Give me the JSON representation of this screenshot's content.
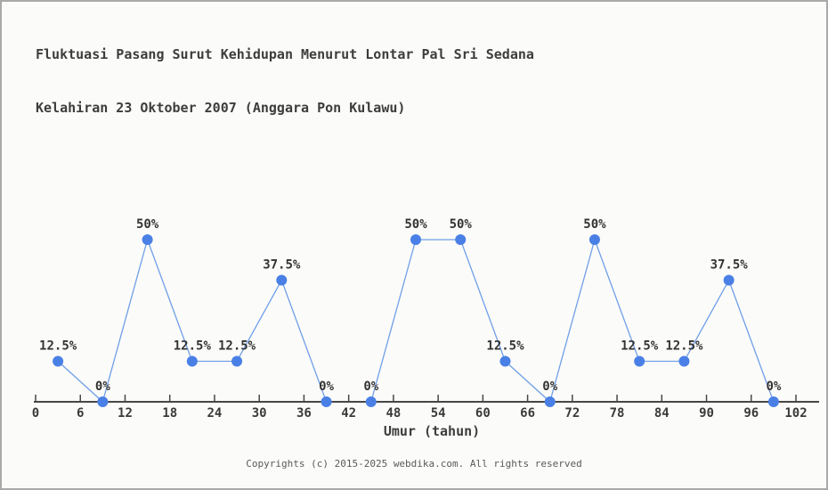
{
  "page": {
    "title_line1": "Fluktuasi Pasang Surut Kehidupan Menurut Lontar Pal Sri Sedana",
    "title_line2": "Kelahiran 23 Oktober 2007 (Anggara Pon Kulawu)",
    "footer": "Copyrights (c) 2015-2025 webdika.com. All rights reserved"
  },
  "chart_data": {
    "type": "line",
    "title": "Fluktuasi Pasang Surut Kehidupan Menurut Lontar Pal Sri Sedana Kelahiran 23 Oktober 2007 (Anggara Pon Kulawu)",
    "xlabel": "Umur (tahun)",
    "ylabel": "",
    "x": [
      3,
      9,
      15,
      21,
      27,
      33,
      39,
      45,
      51,
      57,
      63,
      69,
      75,
      81,
      87,
      93,
      99
    ],
    "values": [
      12.5,
      0,
      50,
      12.5,
      12.5,
      37.5,
      0,
      0,
      50,
      50,
      12.5,
      0,
      50,
      12.5,
      12.5,
      37.5,
      0
    ],
    "point_labels": [
      "12.5%",
      "0%",
      "50%",
      "12.5%",
      "12.5%",
      "37.5%",
      "0%",
      "0%",
      "50%",
      "50%",
      "12.5%",
      "0%",
      "50%",
      "12.5%",
      "12.5%",
      "37.5%",
      "0%"
    ],
    "xlim": [
      0,
      102
    ],
    "ylim": [
      0,
      50
    ],
    "xticks": [
      0,
      6,
      12,
      18,
      24,
      30,
      36,
      42,
      48,
      54,
      60,
      66,
      72,
      78,
      84,
      90,
      96,
      102
    ],
    "grid": false,
    "legend": "none",
    "colors": {
      "marker": "#4a80e6",
      "line": "#6f9fe8",
      "axis": "#474747",
      "point_label": "#333333",
      "tick_label": "#3a3a3a"
    }
  }
}
